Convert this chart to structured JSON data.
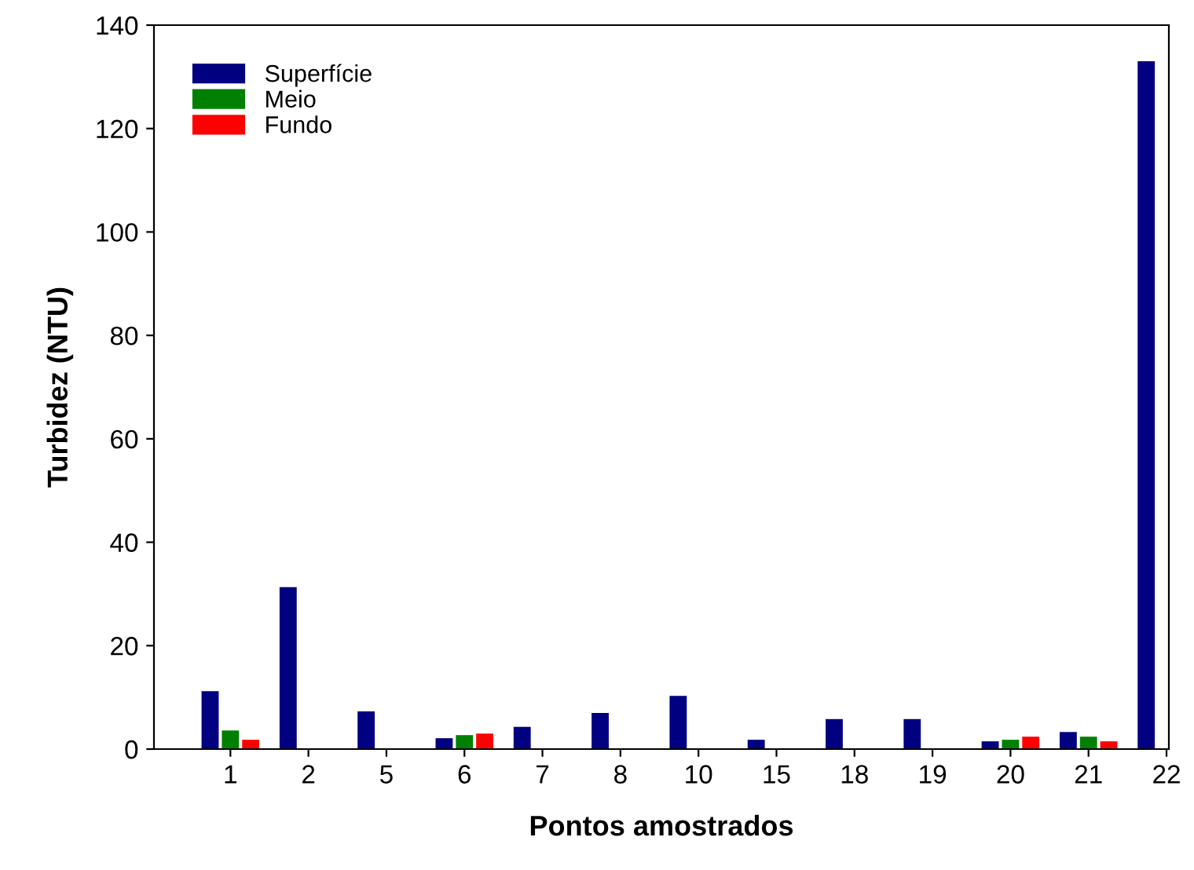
{
  "chart_data": {
    "type": "bar",
    "xlabel": "Pontos amostrados",
    "ylabel": "Turbidez (NTU)",
    "categories": [
      "1",
      "2",
      "5",
      "6",
      "7",
      "8",
      "10",
      "15",
      "18",
      "19",
      "20",
      "21",
      "22"
    ],
    "series": [
      {
        "name": "Superfície",
        "color": "#000080",
        "values": [
          11.2,
          31.3,
          7.3,
          2.1,
          4.3,
          7.0,
          10.3,
          1.8,
          5.8,
          5.8,
          1.5,
          3.3,
          133
        ]
      },
      {
        "name": "Meio",
        "color": "#008000",
        "values": [
          3.6,
          null,
          null,
          2.7,
          null,
          null,
          null,
          null,
          null,
          null,
          1.8,
          2.4,
          null
        ]
      },
      {
        "name": "Fundo",
        "color": "#ff0000",
        "values": [
          1.8,
          null,
          null,
          3.0,
          null,
          null,
          null,
          null,
          null,
          null,
          2.4,
          1.5,
          null
        ]
      }
    ],
    "ylim": [
      0,
      140
    ],
    "yticks": [
      0,
      20,
      40,
      60,
      80,
      100,
      120,
      140
    ],
    "grid": false,
    "legend": "top left"
  }
}
